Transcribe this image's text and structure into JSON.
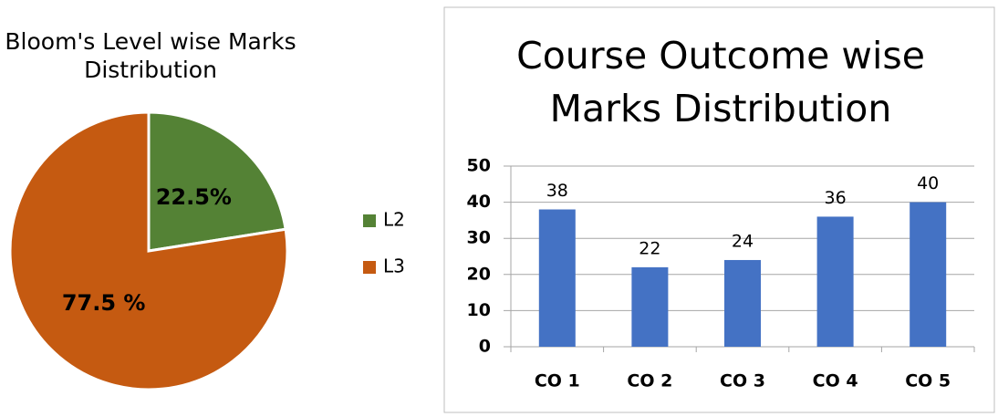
{
  "chart_data": [
    {
      "type": "pie",
      "title": "Bloom's Level wise Marks Distribution",
      "categories": [
        "L2",
        "L3"
      ],
      "values": [
        22.5,
        77.5
      ],
      "value_labels": [
        "22.5%",
        "77.5 %"
      ],
      "colors": [
        "#548235",
        "#c55a11"
      ],
      "legend": "right"
    },
    {
      "type": "bar",
      "title": "Course Outcome wise Marks Distribution",
      "categories": [
        "CO 1",
        "CO 2",
        "CO 3",
        "CO 4",
        "CO 5"
      ],
      "values": [
        38,
        22,
        24,
        36,
        40
      ],
      "color": "#4472c4",
      "ylim": [
        0,
        50
      ],
      "yticks": [
        0,
        10,
        20,
        30,
        40,
        50
      ],
      "grid": true
    }
  ]
}
